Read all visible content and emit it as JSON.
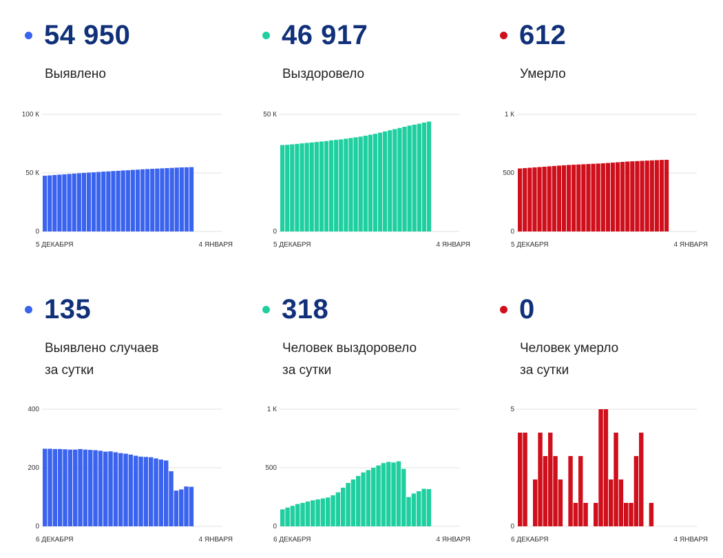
{
  "colors": {
    "blue": "#3a63ee",
    "green": "#1fcfa0",
    "red": "#cf0f1b",
    "number": "#10307a",
    "grid": "#e2e2e2"
  },
  "panels": [
    {
      "value": "54 950",
      "label": [
        "Выявлено"
      ],
      "color": "#3a63ee"
    },
    {
      "value": "46 917",
      "label": [
        "Выздоровело"
      ],
      "color": "#1fcfa0"
    },
    {
      "value": "612",
      "label": [
        "Умерло"
      ],
      "color": "#cf0f1b"
    },
    {
      "value": "135",
      "label": [
        "Выявлено случаев",
        "за сутки"
      ],
      "color": "#3a63ee"
    },
    {
      "value": "318",
      "label": [
        "Человек выздоровело",
        "за сутки"
      ],
      "color": "#1fcfa0"
    },
    {
      "value": "0",
      "label": [
        "Человек умерло",
        "за сутки"
      ],
      "color": "#cf0f1b"
    }
  ],
  "chart_data": [
    {
      "type": "bar",
      "color": "#3a63ee",
      "ylim": [
        0,
        100000
      ],
      "yticks": [
        {
          "v": 0,
          "t": "0"
        },
        {
          "v": 50000,
          "t": "50 К"
        },
        {
          "v": 100000,
          "t": "100 К"
        }
      ],
      "x_start": "5 ДЕКАБРЯ",
      "x_end": "4 ЯНВАРЯ",
      "values": [
        47600,
        47900,
        48200,
        48500,
        48800,
        49100,
        49400,
        49700,
        50000,
        50300,
        50500,
        50800,
        51100,
        51300,
        51600,
        51800,
        52100,
        52300,
        52600,
        52800,
        53100,
        53300,
        53500,
        53700,
        53900,
        54100,
        54300,
        54500,
        54700,
        54800,
        54950
      ]
    },
    {
      "type": "bar",
      "color": "#1fcfa0",
      "ylim": [
        0,
        50000
      ],
      "yticks": [
        {
          "v": 0,
          "t": "0"
        },
        {
          "v": 50000,
          "t": "50 К"
        }
      ],
      "x_start": "5 ДЕКАБРЯ",
      "x_end": "4 ЯНВАРЯ",
      "values": [
        36900,
        37000,
        37200,
        37400,
        37600,
        37800,
        38000,
        38200,
        38400,
        38600,
        38900,
        39100,
        39300,
        39600,
        39900,
        40200,
        40500,
        40900,
        41300,
        41700,
        42200,
        42700,
        43200,
        43700,
        44200,
        44700,
        45200,
        45600,
        46000,
        46500,
        46917
      ]
    },
    {
      "type": "bar",
      "color": "#cf0f1b",
      "ylim": [
        0,
        1000
      ],
      "yticks": [
        {
          "v": 0,
          "t": "0"
        },
        {
          "v": 500,
          "t": "500"
        },
        {
          "v": 1000,
          "t": "1 К"
        }
      ],
      "x_start": "5 ДЕКАБРЯ",
      "x_end": "4 ЯНВАРЯ",
      "values": [
        538,
        541,
        544,
        547,
        550,
        553,
        556,
        559,
        562,
        565,
        568,
        570,
        572,
        574,
        576,
        578,
        580,
        582,
        585,
        588,
        591,
        594,
        597,
        599,
        601,
        603,
        605,
        607,
        609,
        611,
        612
      ]
    },
    {
      "type": "bar",
      "color": "#3a63ee",
      "ylim": [
        0,
        400
      ],
      "yticks": [
        {
          "v": 0,
          "t": "0"
        },
        {
          "v": 200,
          "t": "200"
        },
        {
          "v": 400,
          "t": "400"
        }
      ],
      "x_start": "6 ДЕКАБРЯ",
      "x_end": "4 ЯНВАРЯ",
      "values": [
        265,
        265,
        264,
        264,
        263,
        262,
        262,
        264,
        262,
        261,
        260,
        258,
        255,
        256,
        253,
        250,
        248,
        245,
        241,
        238,
        237,
        236,
        232,
        228,
        225,
        188,
        122,
        126,
        136,
        135
      ]
    },
    {
      "type": "bar",
      "color": "#1fcfa0",
      "ylim": [
        0,
        1000
      ],
      "yticks": [
        {
          "v": 0,
          "t": "0"
        },
        {
          "v": 500,
          "t": "500"
        },
        {
          "v": 1000,
          "t": "1 К"
        }
      ],
      "x_start": "6 ДЕКАБРЯ",
      "x_end": "4 ЯНВАРЯ",
      "values": [
        145,
        160,
        175,
        190,
        200,
        212,
        222,
        230,
        238,
        246,
        265,
        290,
        330,
        370,
        400,
        430,
        460,
        480,
        500,
        520,
        540,
        550,
        545,
        555,
        490,
        250,
        280,
        300,
        320,
        318
      ]
    },
    {
      "type": "bar",
      "color": "#cf0f1b",
      "ylim": [
        0,
        5
      ],
      "yticks": [
        {
          "v": 0,
          "t": "0"
        },
        {
          "v": 5,
          "t": "5"
        }
      ],
      "x_start": "6 ДЕКАБРЯ",
      "x_end": "4 ЯНВАРЯ",
      "values": [
        4,
        4,
        0,
        2,
        4,
        3,
        4,
        3,
        2,
        0,
        3,
        1,
        3,
        1,
        0,
        1,
        5,
        5,
        2,
        4,
        2,
        1,
        1,
        3,
        4,
        0,
        1,
        0,
        0,
        0
      ]
    }
  ]
}
